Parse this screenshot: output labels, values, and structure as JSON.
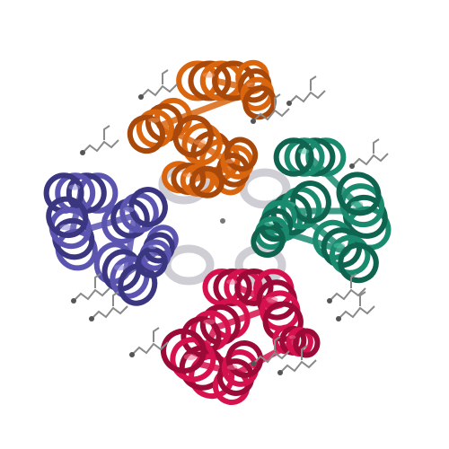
{
  "image": {
    "background": "#ffffff",
    "subject": "protein-tetramer-ribbon-structure",
    "chains": [
      {
        "name": "chain-orange",
        "color": "#d9650f",
        "shade": "#a8480a",
        "highlight": "#f0955a"
      },
      {
        "name": "chain-green",
        "color": "#1a8a6e",
        "shade": "#0f6450",
        "highlight": "#4fc2a4"
      },
      {
        "name": "chain-magenta",
        "color": "#d6124e",
        "shade": "#9c0a37",
        "highlight": "#f06a92"
      },
      {
        "name": "chain-blue",
        "color": "#5b55b0",
        "shade": "#3b3680",
        "highlight": "#8f8ad6"
      }
    ],
    "pore_color": "#b9b9c2",
    "ligand_color": "#8a8a8a"
  }
}
